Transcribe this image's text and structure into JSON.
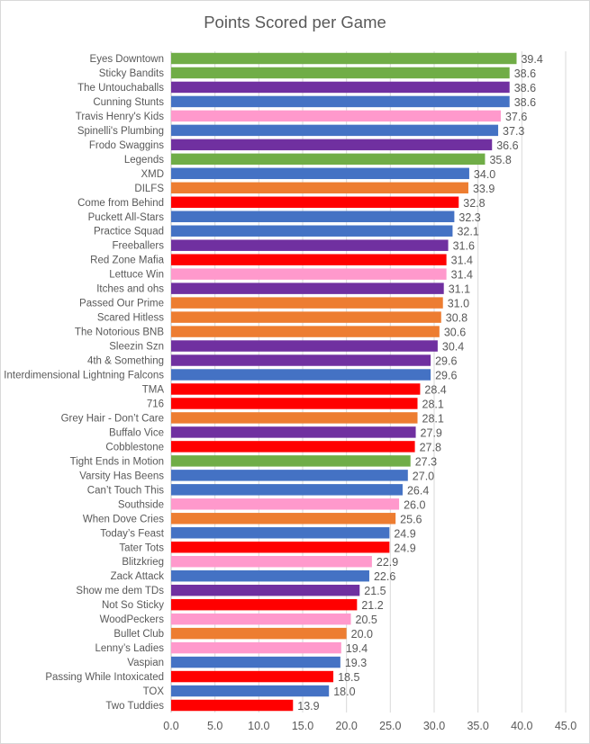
{
  "chart_data": {
    "type": "bar",
    "orientation": "horizontal",
    "title": "Points Scored per Game",
    "xlabel": "",
    "ylabel": "",
    "xlim": [
      0,
      45
    ],
    "xticks": [
      "0.0",
      "5.0",
      "10.0",
      "15.0",
      "20.0",
      "25.0",
      "30.0",
      "35.0",
      "40.0",
      "45.0"
    ],
    "grid": "vertical",
    "legend": "none",
    "colors": {
      "green": "#70ad47",
      "purple": "#7030a0",
      "blue": "#4472c4",
      "pink": "#ff99cc",
      "orange": "#ed7d31",
      "red": "#ff0000"
    },
    "bars": [
      {
        "category": "Eyes Downtown",
        "value": 39.4,
        "label": "39.4",
        "color": "green"
      },
      {
        "category": "Sticky Bandits",
        "value": 38.6,
        "label": "38.6",
        "color": "green"
      },
      {
        "category": "The Untouchaballs",
        "value": 38.6,
        "label": "38.6",
        "color": "purple"
      },
      {
        "category": "Cunning Stunts",
        "value": 38.6,
        "label": "38.6",
        "color": "blue"
      },
      {
        "category": "Travis Henry's Kids",
        "value": 37.6,
        "label": "37.6",
        "color": "pink"
      },
      {
        "category": "Spinelli's Plumbing",
        "value": 37.3,
        "label": "37.3",
        "color": "blue"
      },
      {
        "category": "Frodo Swaggins",
        "value": 36.6,
        "label": "36.6",
        "color": "purple"
      },
      {
        "category": "Legends",
        "value": 35.8,
        "label": "35.8",
        "color": "green"
      },
      {
        "category": "XMD",
        "value": 34.0,
        "label": "34.0",
        "color": "blue"
      },
      {
        "category": "DILFS",
        "value": 33.9,
        "label": "33.9",
        "color": "orange"
      },
      {
        "category": "Come from Behind",
        "value": 32.8,
        "label": "32.8",
        "color": "red"
      },
      {
        "category": "Puckett All-Stars",
        "value": 32.3,
        "label": "32.3",
        "color": "blue"
      },
      {
        "category": "Practice Squad",
        "value": 32.1,
        "label": "32.1",
        "color": "blue"
      },
      {
        "category": "Freeballers",
        "value": 31.6,
        "label": "31.6",
        "color": "purple"
      },
      {
        "category": "Red Zone Mafia",
        "value": 31.4,
        "label": "31.4",
        "color": "red"
      },
      {
        "category": "Lettuce Win",
        "value": 31.4,
        "label": "31.4",
        "color": "pink"
      },
      {
        "category": "Itches and ohs",
        "value": 31.1,
        "label": "31.1",
        "color": "purple"
      },
      {
        "category": "Passed Our Prime",
        "value": 31.0,
        "label": "31.0",
        "color": "orange"
      },
      {
        "category": "Scared Hitless",
        "value": 30.8,
        "label": "30.8",
        "color": "orange"
      },
      {
        "category": "The Notorious BNB",
        "value": 30.6,
        "label": "30.6",
        "color": "orange"
      },
      {
        "category": "Sleezin Szn",
        "value": 30.4,
        "label": "30.4",
        "color": "purple"
      },
      {
        "category": "4th & Something",
        "value": 29.6,
        "label": "29.6",
        "color": "purple"
      },
      {
        "category": "Interdimensional Lightning Falcons",
        "value": 29.6,
        "label": "29.6",
        "color": "blue"
      },
      {
        "category": "TMA",
        "value": 28.4,
        "label": "28.4",
        "color": "red"
      },
      {
        "category": "716",
        "value": 28.1,
        "label": "28.1",
        "color": "red"
      },
      {
        "category": "Grey Hair - Don’t Care",
        "value": 28.1,
        "label": "28.1",
        "color": "orange"
      },
      {
        "category": "Buffalo Vice",
        "value": 27.9,
        "label": "27.9",
        "color": "purple"
      },
      {
        "category": "Cobblestone",
        "value": 27.8,
        "label": "27.8",
        "color": "red"
      },
      {
        "category": "Tight Ends in Motion",
        "value": 27.3,
        "label": "27.3",
        "color": "green"
      },
      {
        "category": "Varsity Has Beens",
        "value": 27.0,
        "label": "27.0",
        "color": "blue"
      },
      {
        "category": "Can’t Touch This",
        "value": 26.4,
        "label": "26.4",
        "color": "blue"
      },
      {
        "category": "Southside",
        "value": 26.0,
        "label": "26.0",
        "color": "pink"
      },
      {
        "category": "When Dove Cries",
        "value": 25.6,
        "label": "25.6",
        "color": "orange"
      },
      {
        "category": "Today’s Feast",
        "value": 24.9,
        "label": "24.9",
        "color": "blue"
      },
      {
        "category": "Tater Tots",
        "value": 24.9,
        "label": "24.9",
        "color": "red"
      },
      {
        "category": "Blitzkrieg",
        "value": 22.9,
        "label": "22.9",
        "color": "pink"
      },
      {
        "category": "Zack Attack",
        "value": 22.6,
        "label": "22.6",
        "color": "blue"
      },
      {
        "category": "Show me dem TDs",
        "value": 21.5,
        "label": "21.5",
        "color": "purple"
      },
      {
        "category": "Not So Sticky",
        "value": 21.2,
        "label": "21.2",
        "color": "red"
      },
      {
        "category": "WoodPeckers",
        "value": 20.5,
        "label": "20.5",
        "color": "pink"
      },
      {
        "category": "Bullet Club",
        "value": 20.0,
        "label": "20.0",
        "color": "orange"
      },
      {
        "category": "Lenny’s Ladies",
        "value": 19.4,
        "label": "19.4",
        "color": "pink"
      },
      {
        "category": "Vaspian",
        "value": 19.3,
        "label": "19.3",
        "color": "blue"
      },
      {
        "category": "Passing While Intoxicated",
        "value": 18.5,
        "label": "18.5",
        "color": "red"
      },
      {
        "category": "TOX",
        "value": 18.0,
        "label": "18.0",
        "color": "blue"
      },
      {
        "category": "Two Tuddies",
        "value": 13.9,
        "label": "13.9",
        "color": "red"
      }
    ]
  }
}
